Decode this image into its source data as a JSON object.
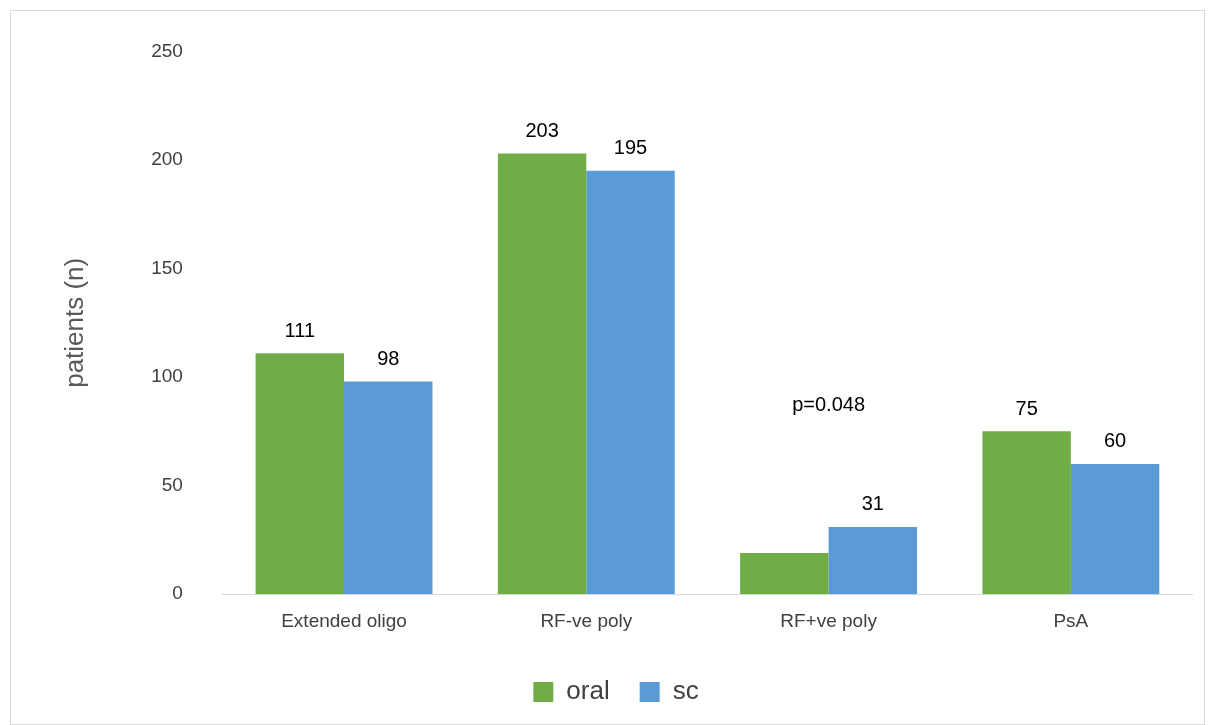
{
  "chart_data": {
    "type": "bar",
    "ylabel": "patients (n)",
    "categories": [
      "Extended oligo",
      "RF-ve poly",
      "RF+ve poly",
      "PsA"
    ],
    "series": [
      {
        "name": "oral",
        "color": "#70ad47",
        "values": [
          111,
          203,
          19,
          75
        ],
        "value_labels": [
          "111",
          "203",
          null,
          "75"
        ]
      },
      {
        "name": "sc",
        "color": "#5b9bd5",
        "values": [
          98,
          195,
          31,
          60
        ],
        "value_labels": [
          "98",
          "195",
          "31",
          "60"
        ]
      }
    ],
    "ylim": [
      0,
      250
    ],
    "yticks": [
      0,
      50,
      100,
      150,
      200,
      250
    ],
    "grid": false,
    "legend": "bottom",
    "annotations": [
      "p=0.048"
    ]
  }
}
